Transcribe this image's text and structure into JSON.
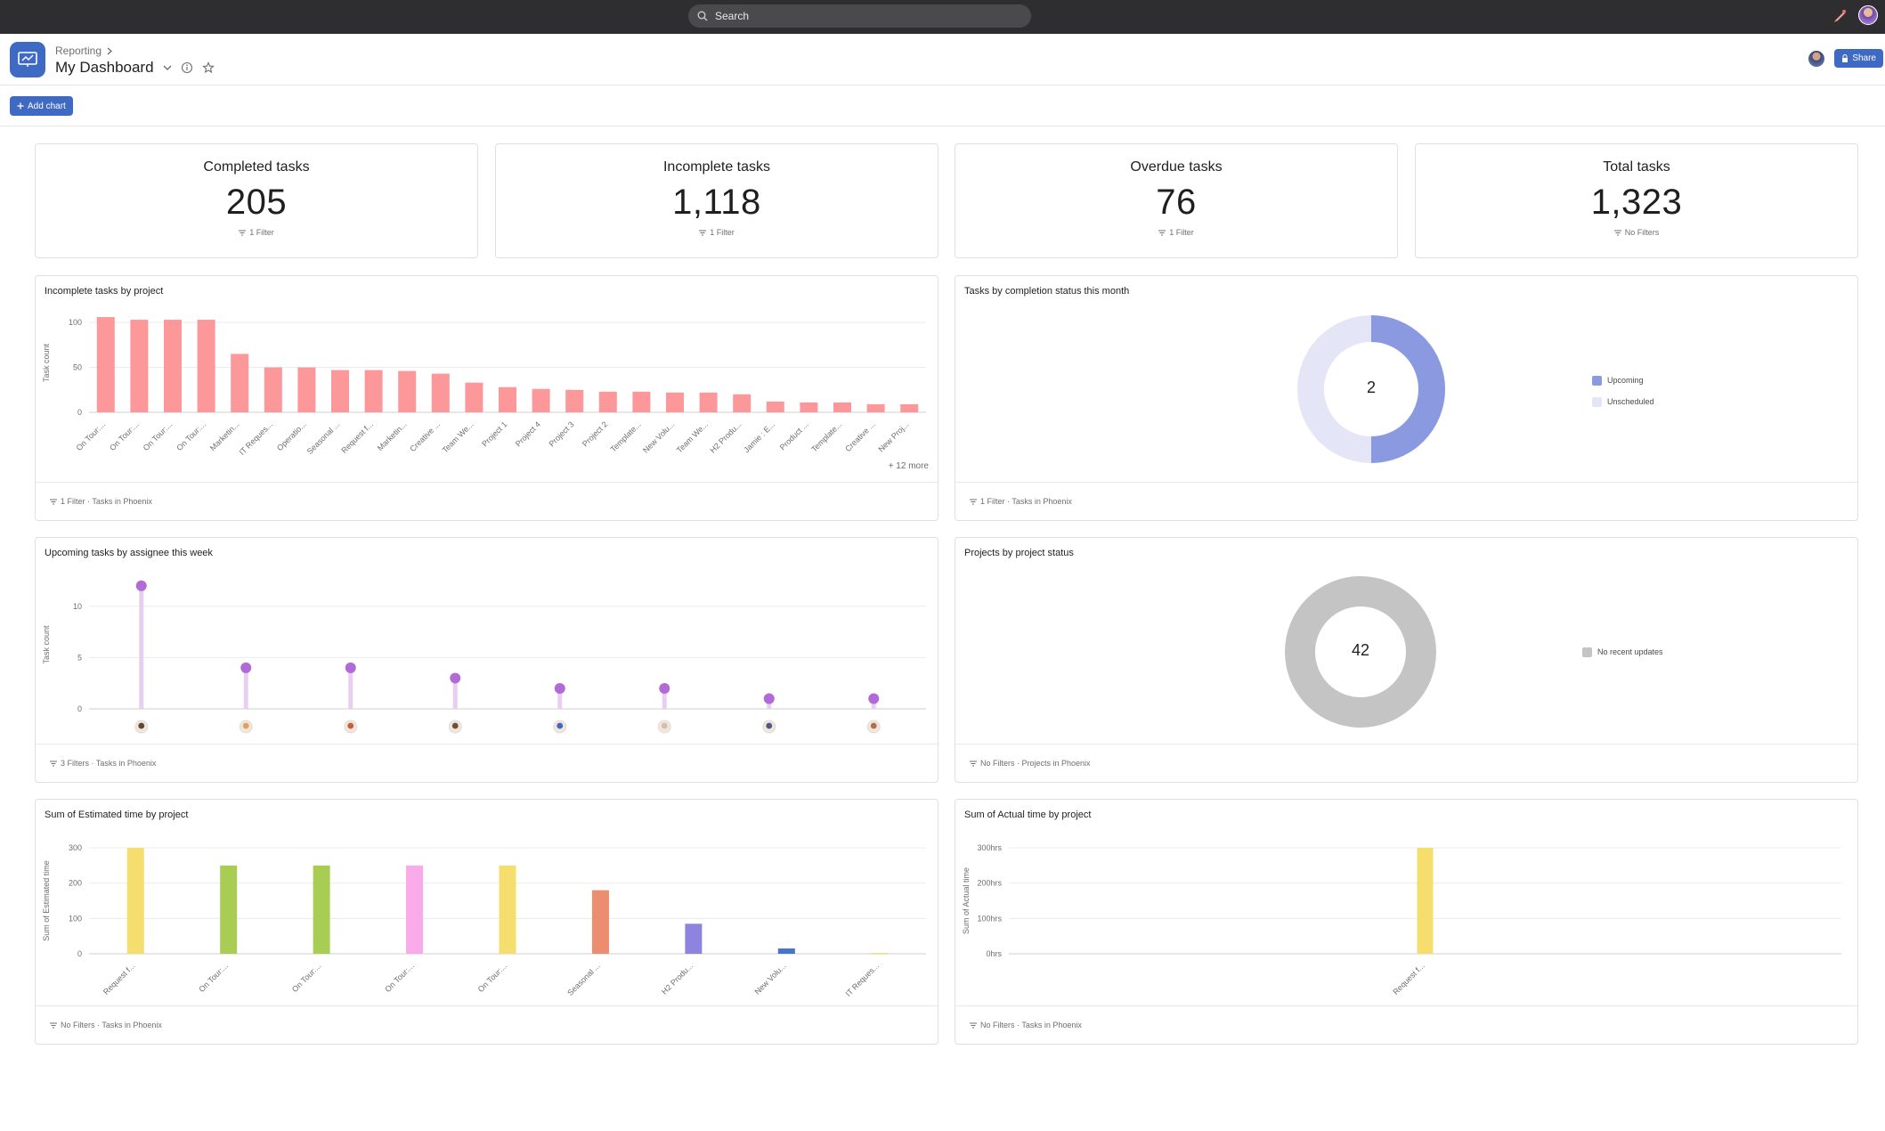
{
  "topbar": {
    "search_placeholder": "Search"
  },
  "header": {
    "breadcrumb": "Reporting",
    "title": "My Dashboard",
    "share_label": "Share"
  },
  "toolbar": {
    "add_chart_label": "Add chart"
  },
  "stats": [
    {
      "label": "Completed tasks",
      "value": "205",
      "filter": "1 Filter"
    },
    {
      "label": "Incomplete tasks",
      "value": "1,118",
      "filter": "1 Filter"
    },
    {
      "label": "Overdue tasks",
      "value": "76",
      "filter": "1 Filter"
    },
    {
      "label": "Total tasks",
      "value": "1,323",
      "filter": "No Filters"
    }
  ],
  "cards": {
    "incomplete_by_project": {
      "title": "Incomplete tasks by project",
      "footer": "1 Filter · Tasks in Phoenix",
      "more": "+ 12 more"
    },
    "completion_status": {
      "title": "Tasks by completion status this month",
      "footer": "1 Filter · Tasks in Phoenix",
      "center": "2"
    },
    "upcoming_by_assignee": {
      "title": "Upcoming tasks by assignee this week",
      "footer": "3 Filters · Tasks in Phoenix"
    },
    "projects_by_status": {
      "title": "Projects by project status",
      "footer": "No Filters · Projects in Phoenix",
      "center": "42"
    },
    "estimated_time": {
      "title": "Sum of Estimated time by project",
      "footer": "No Filters · Tasks in Phoenix"
    },
    "actual_time": {
      "title": "Sum of Actual time by project",
      "footer": "No Filters · Tasks in Phoenix"
    }
  },
  "chart_data": [
    {
      "id": "incomplete_by_project",
      "type": "bar",
      "ylabel": "Task count",
      "ylim": [
        0,
        110
      ],
      "yticks": [
        0,
        50,
        100
      ],
      "color": "#fc979a",
      "categories": [
        "On Tour:...",
        "On Tour:...",
        "On Tour:...",
        "On Tour:...",
        "Marketin...",
        "IT Reques...",
        "Operatio...",
        "Seasonal ...",
        "Request f...",
        "Marketin...",
        "Creative ...",
        "Team We...",
        "Project 1",
        "Project 4",
        "Project 3",
        "Project 2",
        "Template...",
        "New Volu...",
        "Team We...",
        "H2 Produ...",
        "Jamie : E...",
        "Product ...",
        "Template...",
        "Creative ...",
        "New Proj..."
      ],
      "values": [
        106,
        103,
        103,
        103,
        65,
        50,
        50,
        47,
        47,
        46,
        43,
        33,
        28,
        26,
        25,
        23,
        23,
        22,
        22,
        20,
        12,
        11,
        11,
        9,
        9
      ]
    },
    {
      "id": "completion_status",
      "type": "pie",
      "series": [
        {
          "name": "Upcoming",
          "value": 1,
          "color": "#8b9ae0"
        },
        {
          "name": "Unscheduled",
          "value": 1,
          "color": "#e4e6f8"
        }
      ]
    },
    {
      "id": "upcoming_by_assignee",
      "type": "scatter",
      "ylabel": "Task count",
      "ylim": [
        0,
        12.5
      ],
      "yticks": [
        0,
        5,
        10
      ],
      "color": "#b26ad6",
      "stem_color": "#e8cff2",
      "values": [
        12,
        4,
        4,
        3,
        2,
        2,
        1,
        1
      ],
      "avatars": [
        "#5a4a3a",
        "#e0a060",
        "#c06040",
        "#6a5040",
        "#3a6ac0",
        "#d0c0b0",
        "#4a5a8a",
        "#b07050"
      ]
    },
    {
      "id": "projects_by_status",
      "type": "pie",
      "series": [
        {
          "name": "No recent updates",
          "value": 42,
          "color": "#c4c4c4"
        }
      ]
    },
    {
      "id": "estimated_time",
      "type": "bar",
      "ylabel": "Sum of Estimated time",
      "ylim": [
        0,
        300
      ],
      "yticks": [
        0,
        100,
        200,
        300
      ],
      "categories": [
        "Request f...",
        "On Tour:...",
        "On Tour:...",
        "On Tour:...",
        "On Tour:...",
        "Seasonal ...",
        "H2 Produ...",
        "New Volu...",
        "IT Reques..."
      ],
      "values": [
        300,
        250,
        250,
        250,
        250,
        180,
        85,
        15,
        2
      ],
      "colors": [
        "#f5dd6e",
        "#a9cd54",
        "#a9cd54",
        "#f9aae8",
        "#f5dd6e",
        "#ed8d70",
        "#8d84e0",
        "#4573d2",
        "#f5dd6e"
      ]
    },
    {
      "id": "actual_time",
      "type": "bar",
      "ylabel": "Sum of Actual time",
      "ylim": [
        0,
        300
      ],
      "yticks": [
        0,
        100,
        200,
        300
      ],
      "ytick_labels": [
        "0hrs",
        "100hrs",
        "200hrs",
        "300hrs"
      ],
      "categories": [
        "Request f..."
      ],
      "values": [
        300
      ],
      "colors": [
        "#f5dd6e"
      ]
    }
  ]
}
